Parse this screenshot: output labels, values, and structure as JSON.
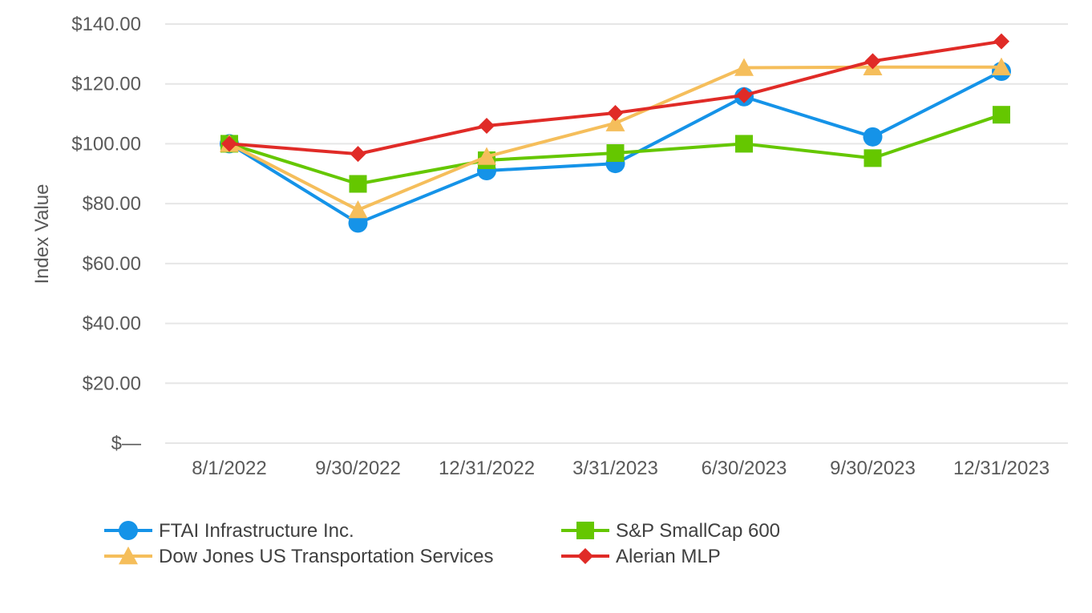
{
  "chart_data": {
    "type": "line",
    "title": "",
    "xlabel": "",
    "ylabel": "Index Value",
    "ylim": [
      0,
      140
    ],
    "yticks": [
      0,
      20,
      40,
      60,
      80,
      100,
      120,
      140
    ],
    "ytick_labels": [
      "$—",
      "$20.00",
      "$40.00",
      "$60.00",
      "$80.00",
      "$100.00",
      "$120.00",
      "$140.00"
    ],
    "grid": true,
    "legend_position": "bottom",
    "categories": [
      "8/1/2022",
      "9/30/2022",
      "12/31/2022",
      "3/31/2023",
      "6/30/2023",
      "9/30/2023",
      "12/31/2023"
    ],
    "series": [
      {
        "name": "FTAI Infrastructure Inc.",
        "color": "#1593e8",
        "marker": "circle",
        "values": [
          100.0,
          73.5,
          91.0,
          93.4,
          115.7,
          102.3,
          124.2
        ]
      },
      {
        "name": "S&P SmallCap 600",
        "color": "#65c700",
        "marker": "square",
        "values": [
          100.0,
          86.6,
          94.5,
          96.9,
          100.0,
          95.2,
          109.7
        ]
      },
      {
        "name": "Dow Jones US Transportation Services",
        "color": "#f5be5b",
        "marker": "triangle",
        "values": [
          100.0,
          77.9,
          95.7,
          106.9,
          125.4,
          125.6,
          125.6
        ]
      },
      {
        "name": "Alerian MLP",
        "color": "#e02b27",
        "marker": "diamond",
        "values": [
          100.0,
          96.6,
          106.0,
          110.3,
          116.2,
          127.6,
          134.2
        ]
      }
    ]
  }
}
